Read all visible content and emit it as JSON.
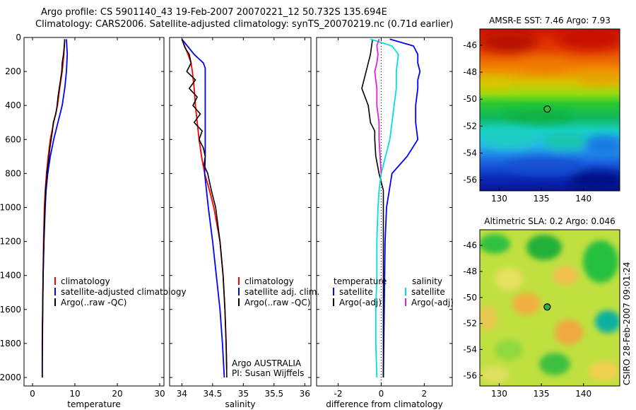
{
  "header": {
    "line1": "Argo profile: CS 5901140_43 19-Feb-2007 20070221_12 50.732S 135.694E",
    "line2": "Climatology: CARS2006. Satellite-adjusted climatology: synTS_20070219.nc (0.71d earlier)"
  },
  "colors": {
    "climatology": "#ff0000",
    "satellite": "#0000ff",
    "argo": "#000000",
    "sal_satellite": "#00e0e0",
    "sal_argo": "#e020e0"
  },
  "chart_data": [
    {
      "type": "line",
      "name": "temperature-profile",
      "xlabel": "temperature",
      "xlim": [
        -2,
        31
      ],
      "ylim": [
        0,
        2050
      ],
      "xticks": [
        "0",
        "10",
        "20",
        "30"
      ],
      "xtick_values": [
        0,
        10,
        20,
        30
      ],
      "yticks": [
        "0",
        "200",
        "400",
        "600",
        "800",
        "1000",
        "1200",
        "1400",
        "1600",
        "1800",
        "2000"
      ],
      "ytick_values": [
        0,
        200,
        400,
        600,
        800,
        1000,
        1200,
        1400,
        1600,
        1800,
        2000
      ],
      "legend": [
        "climatology",
        "satellite-adjusted climatology",
        "Argo(..raw -QC)"
      ],
      "series": [
        {
          "name": "climatology",
          "color": "#ff0000",
          "depth": [
            10,
            100,
            200,
            300,
            400,
            500,
            600,
            700,
            800,
            900,
            1000,
            1200,
            1400,
            1600,
            1800,
            1900
          ],
          "values": [
            7.6,
            7.4,
            7.0,
            6.4,
            5.9,
            5.0,
            4.2,
            3.7,
            3.3,
            3.0,
            2.8,
            2.6,
            2.5,
            2.4,
            2.35,
            2.3
          ]
        },
        {
          "name": "satellite-adjusted climatology",
          "color": "#0000ff",
          "depth": [
            10,
            100,
            200,
            300,
            400,
            500,
            600,
            700,
            800,
            900,
            1000,
            1200,
            1400,
            1600,
            1800,
            2000
          ],
          "values": [
            8.0,
            8.2,
            8.0,
            7.6,
            7.0,
            6.0,
            5.0,
            4.2,
            3.6,
            3.2,
            3.0,
            2.7,
            2.5,
            2.4,
            2.3,
            2.3
          ]
        },
        {
          "name": "Argo(..raw -QC)",
          "color": "#000000",
          "depth": [
            10,
            50,
            100,
            150,
            200,
            250,
            300,
            350,
            400,
            450,
            500,
            550,
            600,
            650,
            700,
            800,
            900,
            1000,
            1200,
            1400,
            1600,
            1800,
            2000
          ],
          "values": [
            7.6,
            7.5,
            7.3,
            7.0,
            6.9,
            6.6,
            6.3,
            6.0,
            5.8,
            5.5,
            4.9,
            4.7,
            4.4,
            4.1,
            3.9,
            3.4,
            3.1,
            2.9,
            2.7,
            2.5,
            2.4,
            2.3,
            2.3
          ]
        }
      ]
    },
    {
      "type": "line",
      "name": "salinity-profile",
      "xlabel": "salinity",
      "xlim": [
        33.8,
        36.1
      ],
      "ylim": [
        0,
        2050
      ],
      "xticks": [
        "34",
        "34.5",
        "35",
        "35.5",
        "36"
      ],
      "xtick_values": [
        34,
        34.5,
        35,
        35.5,
        36
      ],
      "legend": [
        "climatology",
        "satellite adj. clim.",
        "Argo(..raw -QC)"
      ],
      "annotation": [
        "Argo AUSTRALIA",
        "PI: Susan Wijffels"
      ],
      "series": [
        {
          "name": "climatology",
          "color": "#ff0000",
          "depth": [
            10,
            100,
            150,
            200,
            300,
            400,
            500,
            600,
            700,
            800,
            900,
            1000,
            1200,
            1400,
            1600,
            1800,
            1950
          ],
          "values": [
            34.0,
            34.1,
            34.15,
            34.17,
            34.2,
            34.22,
            34.25,
            34.28,
            34.32,
            34.37,
            34.45,
            34.52,
            34.62,
            34.67,
            34.7,
            34.72,
            34.73
          ]
        },
        {
          "name": "satellite adj. clim.",
          "color": "#0000ff",
          "depth": [
            10,
            100,
            150,
            180,
            200,
            400,
            600,
            700,
            800,
            1000,
            1200,
            1400,
            1600,
            1800,
            2000
          ],
          "values": [
            34.0,
            34.2,
            34.35,
            34.38,
            34.38,
            34.38,
            34.38,
            34.38,
            34.37,
            34.43,
            34.5,
            34.56,
            34.62,
            34.66,
            34.69
          ]
        },
        {
          "name": "Argo(..raw -QC)",
          "color": "#000000",
          "depth": [
            10,
            60,
            100,
            150,
            200,
            250,
            300,
            350,
            400,
            450,
            500,
            550,
            600,
            650,
            700,
            750,
            800,
            900,
            1000,
            1200,
            1400,
            1600,
            1800,
            2000
          ],
          "values": [
            34.0,
            34.05,
            34.12,
            34.15,
            34.08,
            34.22,
            34.12,
            34.25,
            34.18,
            34.3,
            34.2,
            34.33,
            34.28,
            34.35,
            34.38,
            34.36,
            34.42,
            34.48,
            34.55,
            34.62,
            34.67,
            34.7,
            34.72,
            34.73
          ]
        }
      ]
    },
    {
      "type": "line",
      "name": "difference-profile",
      "xlabel": "difference from climatology",
      "xlim": [
        -3,
        3.3
      ],
      "ylim": [
        0,
        2050
      ],
      "xticks": [
        "-2",
        "0",
        "2"
      ],
      "xtick_values": [
        -2,
        0,
        2
      ],
      "legend_left": [
        "temperature",
        "satellite",
        "Argo(-adj)"
      ],
      "legend_right": [
        "salinity",
        "satellite",
        "Argo(-adj)"
      ],
      "series": [
        {
          "name": "temperature satellite",
          "color": "#0000ff",
          "depth": [
            10,
            50,
            100,
            150,
            200,
            250,
            300,
            400,
            500,
            600,
            700,
            800,
            1000,
            1200,
            1500,
            1800,
            2000
          ],
          "values": [
            0.4,
            1.5,
            1.7,
            1.7,
            1.8,
            1.7,
            1.7,
            1.6,
            1.6,
            1.7,
            1.2,
            0.5,
            0.25,
            0.18,
            0.15,
            0.12,
            0.1
          ]
        },
        {
          "name": "temperature Argo(-adj)",
          "color": "#000000",
          "depth": [
            10,
            100,
            200,
            300,
            400,
            500,
            550,
            600,
            700,
            800,
            900,
            1000,
            1200,
            1400,
            1600,
            1800,
            2000
          ],
          "values": [
            -0.4,
            -0.5,
            -0.7,
            -0.9,
            -0.6,
            -0.5,
            -0.3,
            -0.3,
            -0.25,
            -0.1,
            0.1,
            0.1,
            0.1,
            0.1,
            0.1,
            0.1,
            0.1
          ]
        },
        {
          "name": "salinity satellite",
          "color": "#00e0e0",
          "depth": [
            10,
            50,
            100,
            200,
            300,
            400,
            500,
            600,
            700,
            800,
            900,
            1000,
            1200,
            1400,
            1600,
            1800,
            2000
          ],
          "values": [
            -0.5,
            0.5,
            0.8,
            0.7,
            0.7,
            0.6,
            0.5,
            0.4,
            0.2,
            0.0,
            -0.1,
            -0.15,
            -0.2,
            -0.2,
            -0.25,
            -0.25,
            -0.2
          ]
        },
        {
          "name": "salinity Argo(-adj)",
          "color": "#e020e0",
          "depth": [
            10,
            50,
            100,
            150,
            200,
            300,
            400,
            500,
            600,
            700,
            800
          ],
          "values": [
            -0.1,
            -0.2,
            -0.15,
            -0.2,
            -0.3,
            -0.2,
            -0.2,
            -0.1,
            -0.1,
            -0.05,
            0.0
          ]
        }
      ]
    },
    {
      "type": "heatmap",
      "name": "amsre-sst-map",
      "title": "AMSR-E SST: 7.46 Argo: 7.93",
      "xlim": [
        127.7,
        144.3
      ],
      "ylim": [
        -56.8,
        -44.8
      ],
      "xticks": [
        "130",
        "135",
        "140"
      ],
      "xtick_values": [
        130,
        135,
        140
      ],
      "yticks": [
        "-46",
        "-48",
        "-50",
        "-52",
        "-54",
        "-56"
      ],
      "ytick_values": [
        -46,
        -48,
        -50,
        -52,
        -54,
        -56
      ],
      "marker": {
        "lon": 135.694,
        "lat": -50.732
      }
    },
    {
      "type": "heatmap",
      "name": "altimetric-sla-map",
      "title": "Altimetric SLA: 0.2 Argo: 0.046",
      "xlim": [
        127.7,
        144.3
      ],
      "ylim": [
        -56.8,
        -44.8
      ],
      "xticks": [
        "130",
        "135",
        "140"
      ],
      "xtick_values": [
        130,
        135,
        140
      ],
      "yticks": [
        "-46",
        "-48",
        "-50",
        "-52",
        "-54",
        "-56"
      ],
      "ytick_values": [
        -46,
        -48,
        -50,
        -52,
        -54,
        -56
      ],
      "marker": {
        "lon": 135.694,
        "lat": -50.732
      }
    }
  ],
  "footer_vertical": "CSIRO 28-Feb-2007 09:01:24"
}
